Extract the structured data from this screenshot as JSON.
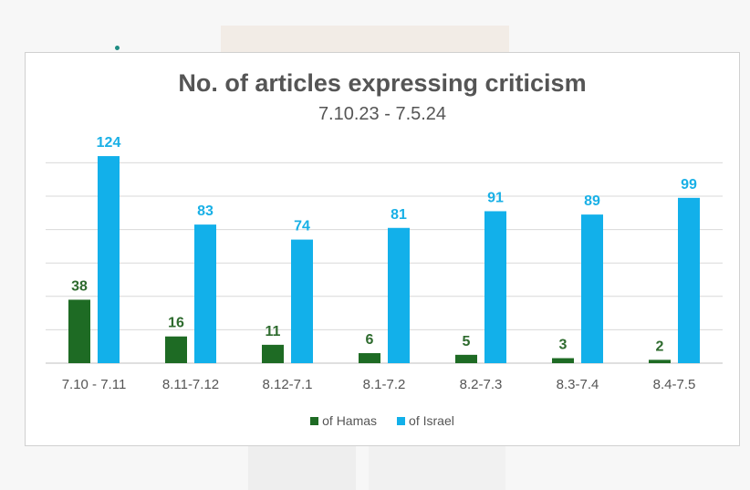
{
  "chart_data": {
    "type": "bar",
    "title": "No. of articles expressing criticism",
    "subtitle": "7.10.23 - 7.5.24",
    "categories": [
      "7.10 - 7.11",
      "8.11-7.12",
      "8.12-7.1",
      "8.1-7.2",
      "8.2-7.3",
      "8.3-7.4",
      "8.4-7.5"
    ],
    "series": [
      {
        "name": "of Hamas",
        "values": [
          38,
          16,
          11,
          6,
          5,
          3,
          2
        ],
        "color": "#1e6b24",
        "label_color": "#2e6b2e"
      },
      {
        "name": "of Israel",
        "values": [
          124,
          83,
          74,
          81,
          91,
          89,
          99
        ],
        "color": "#12b0ea",
        "label_color": "#19b0e6"
      }
    ],
    "ylim": [
      0,
      140
    ],
    "gridlines": [
      0,
      20,
      40,
      60,
      80,
      100,
      120
    ],
    "grid": true,
    "legend_position": "bottom"
  }
}
